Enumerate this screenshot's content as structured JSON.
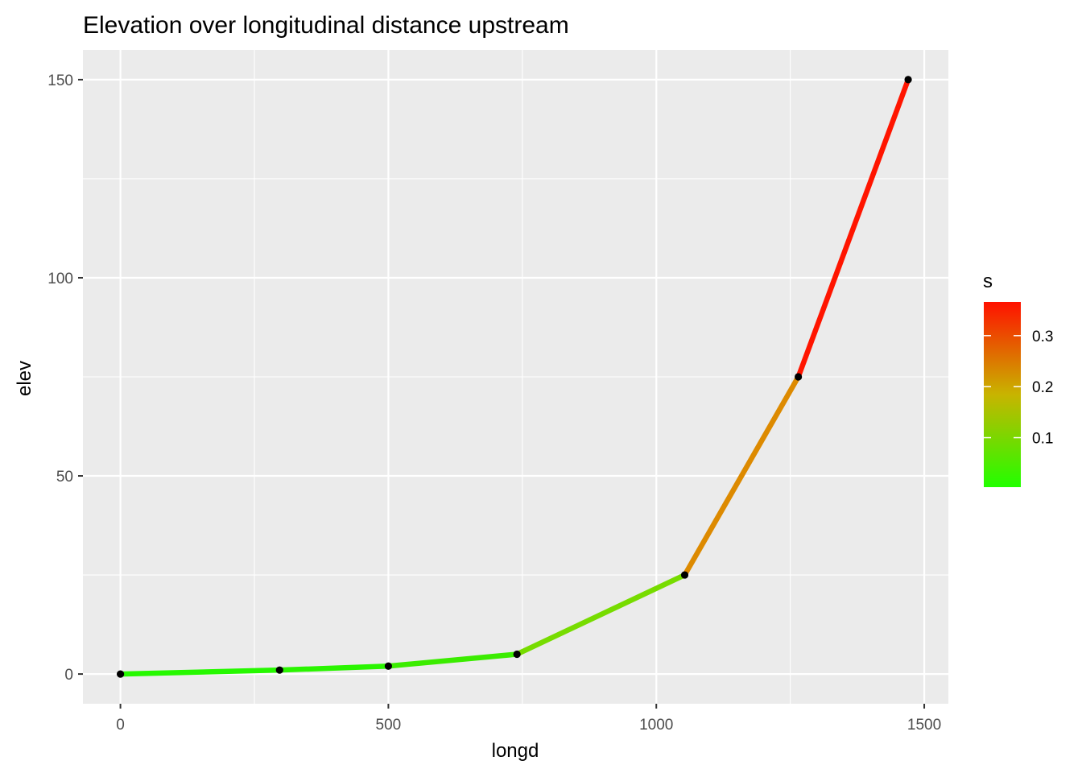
{
  "chart_data": {
    "type": "line",
    "title": "Elevation over longitudinal distance upstream",
    "xlabel": "longd",
    "ylabel": "elev",
    "xlim": [
      -70,
      1545
    ],
    "ylim": [
      -7.5,
      157.5
    ],
    "x_ticks": [
      0,
      500,
      1000,
      1500
    ],
    "x_tick_labels": [
      "0",
      "500",
      "1000",
      "1500"
    ],
    "y_ticks": [
      0,
      50,
      100,
      150
    ],
    "y_tick_labels": [
      "0",
      "50",
      "100",
      "150"
    ],
    "grid": true,
    "points": [
      {
        "x": 0,
        "y": 0
      },
      {
        "x": 297,
        "y": 1
      },
      {
        "x": 500,
        "y": 2
      },
      {
        "x": 740,
        "y": 5
      },
      {
        "x": 1053,
        "y": 25
      },
      {
        "x": 1265,
        "y": 75
      },
      {
        "x": 1470,
        "y": 150
      }
    ],
    "segment_colors": [
      "#26f800",
      "#2af500",
      "#3bec00",
      "#77dc00",
      "#dd8a00",
      "#ff1500"
    ],
    "legend": {
      "title": "s",
      "position": "right",
      "range": [
        0.003,
        0.366
      ],
      "ticks": [
        0.1,
        0.2,
        0.3
      ],
      "tick_labels": [
        "0.1",
        "0.2",
        "0.3"
      ],
      "color_low": "#22ff00",
      "color_mid": "#c8b400",
      "color_high": "#ff1100"
    },
    "colors": {
      "panel_bg": "#ebebeb",
      "grid_major": "#ffffff",
      "point": "#000000"
    }
  }
}
